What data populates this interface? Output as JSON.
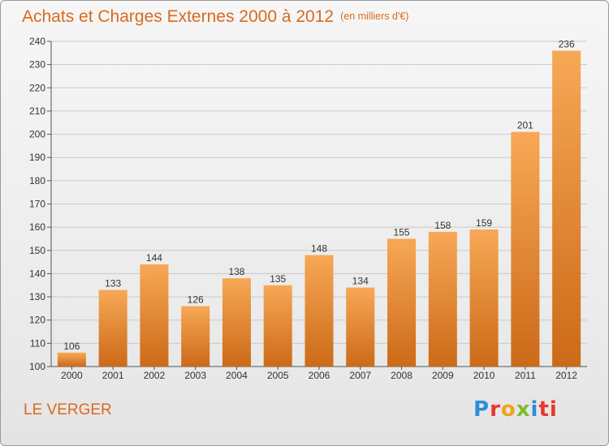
{
  "title": "Achats et Charges Externes 2000 à 2012",
  "unit": "(en milliers d'€)",
  "city": "LE VERGER",
  "logo": {
    "parts": [
      "P",
      "r",
      "o",
      "x",
      "i",
      "ti"
    ]
  },
  "colors": {
    "bar_light": "#f6a550",
    "bar_dark": "#cf6d1a",
    "title": "#d96a1e"
  },
  "chart_data": {
    "type": "bar",
    "categories": [
      "2000",
      "2001",
      "2002",
      "2003",
      "2004",
      "2005",
      "2006",
      "2007",
      "2008",
      "2009",
      "2010",
      "2011",
      "2012"
    ],
    "values": [
      106,
      133,
      144,
      126,
      138,
      135,
      148,
      134,
      155,
      158,
      159,
      201,
      236
    ],
    "ylim": [
      100,
      240
    ],
    "yticks": [
      100,
      110,
      120,
      130,
      140,
      150,
      160,
      170,
      180,
      190,
      200,
      210,
      220,
      230,
      240
    ],
    "grid": true,
    "xlabel": "",
    "ylabel": ""
  }
}
